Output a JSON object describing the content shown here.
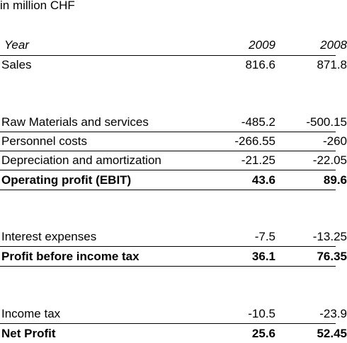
{
  "unit_note": "in million CHF",
  "header": {
    "label": "Year",
    "col_2009": "2009",
    "col_2008": "2008"
  },
  "rows": {
    "sales": {
      "label": "Sales",
      "v2009": "816.6",
      "v2008": "871.8"
    },
    "raw_materials": {
      "label": "Raw Materials and services",
      "v2009": "-485.2",
      "v2008": "-500.15"
    },
    "personnel": {
      "label": "Personnel costs",
      "v2009": "-266.55",
      "v2008": "-260"
    },
    "depreciation": {
      "label": "Depreciation and amortization",
      "v2009": "-21.25",
      "v2008": "-22.05"
    },
    "ebit": {
      "label": "Operating profit (EBIT)",
      "v2009": "43.6",
      "v2008": "89.6"
    },
    "interest": {
      "label": "Interest expenses",
      "v2009": "-7.5",
      "v2008": "-13.25"
    },
    "pbt": {
      "label": "Profit before income tax",
      "v2009": "36.1",
      "v2008": "76.35"
    },
    "income_tax": {
      "label": "Income tax",
      "v2009": "-10.5",
      "v2008": "-23.9"
    },
    "net_profit": {
      "label": "Net Profit",
      "v2009": "25.6",
      "v2008": "52.45"
    }
  }
}
